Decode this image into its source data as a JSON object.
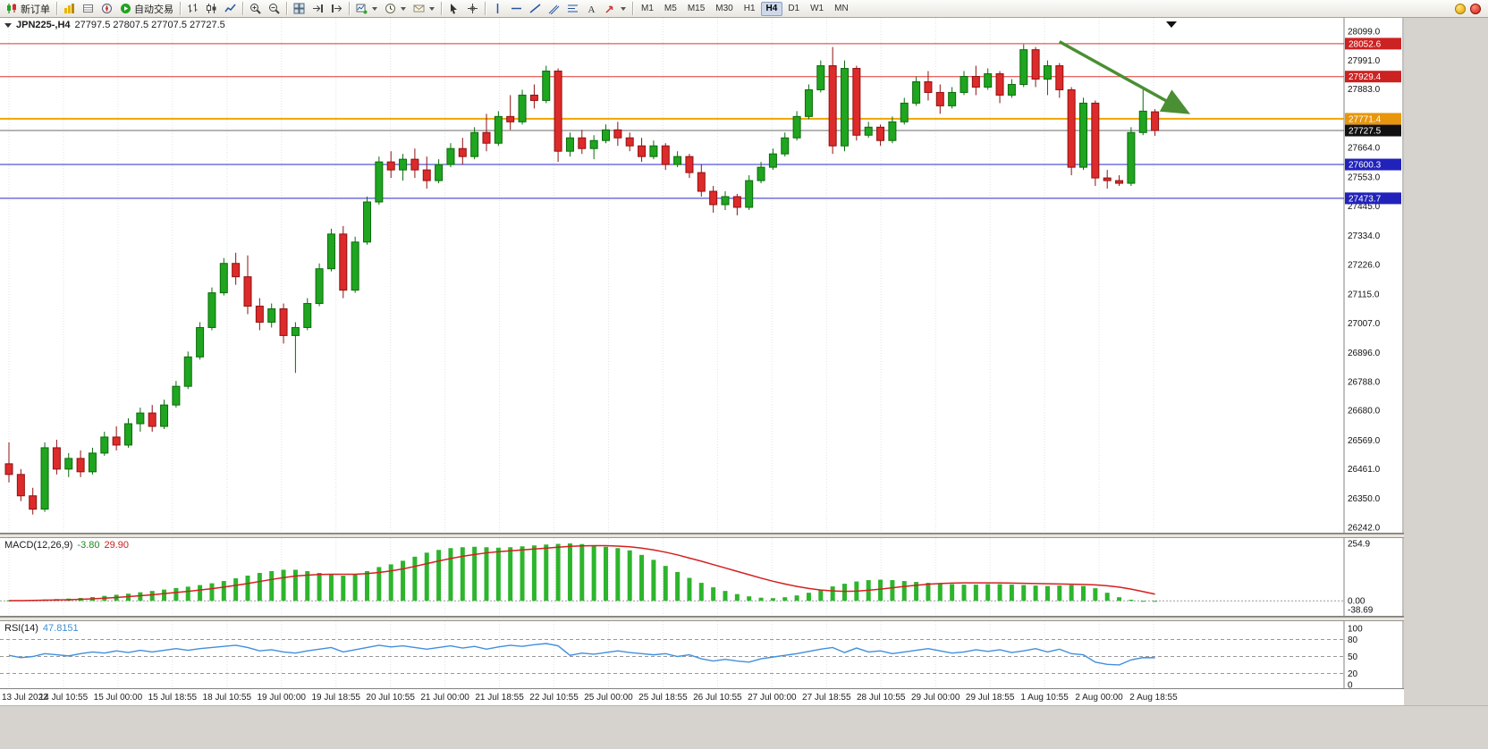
{
  "colors": {
    "bull": "#1fa51f",
    "bull_dark": "#0c6b0c",
    "bear": "#dd2a2a",
    "bear_dark": "#8f1111",
    "resistance_line": "#e03232",
    "support_line": "#2929cc",
    "pivot_line": "#f0a500",
    "price_line": "#6b6b6b",
    "price_badge": "#111111",
    "macd_histogram": "#2db52d",
    "macd_signal": "#d42020",
    "rsi_line": "#418fde",
    "arrow": "#4a8f33",
    "grid": "#e3e3e3",
    "axis_text": "#111111"
  },
  "toolbar": {
    "buttons": [
      {
        "name": "new-order-button",
        "icon": "new-order-icon",
        "label": "新订单"
      },
      {
        "sep": true
      },
      {
        "name": "market-watch-button",
        "icon": "bar-chart-icon"
      },
      {
        "name": "data-window-button",
        "icon": "data-window-icon"
      },
      {
        "name": "navigator-button",
        "icon": "navigator-icon"
      },
      {
        "name": "autotrade-button",
        "icon": "autotrade-icon",
        "label": "自动交易"
      },
      {
        "sep": true
      },
      {
        "name": "bars-chart-button",
        "icon": "ohlc-bars-icon"
      },
      {
        "name": "candles-chart-button",
        "icon": "candles-icon"
      },
      {
        "name": "line-chart-button",
        "icon": "line-chart-icon"
      },
      {
        "sep": true
      },
      {
        "name": "zoom-in-button",
        "icon": "zoom-in-icon"
      },
      {
        "name": "zoom-out-button",
        "icon": "zoom-out-icon"
      },
      {
        "sep": true
      },
      {
        "name": "tile-windows-button",
        "icon": "tile-windows-icon"
      },
      {
        "name": "auto-scroll-button",
        "icon": "auto-scroll-icon"
      },
      {
        "name": "chart-shift-button",
        "icon": "chart-shift-icon"
      },
      {
        "sep": true
      },
      {
        "name": "new-chart-button",
        "icon": "new-chart-icon",
        "dropdown": true
      },
      {
        "name": "profiles-button",
        "icon": "clock-icon",
        "dropdown": true
      },
      {
        "name": "alerts-button",
        "icon": "mail-icon",
        "dropdown": true
      },
      {
        "sep": true
      },
      {
        "name": "cursor-button",
        "icon": "cursor-icon"
      },
      {
        "name": "crosshair-button",
        "icon": "crosshair-icon"
      },
      {
        "sep": true
      },
      {
        "name": "vertical-line-button",
        "icon": "vertical-line-icon"
      },
      {
        "name": "horizontal-line-button",
        "icon": "horizontal-line-icon"
      },
      {
        "name": "trendline-button",
        "icon": "trendline-icon"
      },
      {
        "name": "channel-button",
        "icon": "channel-icon"
      },
      {
        "name": "fibonacci-button",
        "icon": "fibonacci-icon"
      },
      {
        "name": "text-label-button",
        "icon": "text-icon"
      },
      {
        "name": "arrow-tools-button",
        "icon": "arrow-icon",
        "dropdown": true
      },
      {
        "sep": true
      }
    ],
    "timeframes": [
      "M1",
      "M5",
      "M15",
      "M30",
      "H1",
      "H4",
      "D1",
      "W1",
      "MN"
    ],
    "active_timeframe": "H4"
  },
  "chart_data": {
    "type": "candlestick",
    "symbol_timeframe_label": "JPN225-,H4",
    "ohlc_text": "27797.5 27807.5 27707.5 27727.5",
    "current_ohlc": {
      "open": 27797.5,
      "high": 27807.5,
      "low": 27707.5,
      "close": 27727.5
    },
    "ylim": [
      26242.0,
      28099.0
    ],
    "price_axis_ticks": [
      "28099.0",
      "27991.0",
      "27883.0",
      "27664.0",
      "27553.0",
      "27445.0",
      "27334.0",
      "27226.0",
      "27115.0",
      "27007.0",
      "26896.0",
      "26788.0",
      "26680.0",
      "26569.0",
      "26461.0",
      "26350.0",
      "26242.0"
    ],
    "time_axis_labels": [
      "13 Jul 2022",
      "14 Jul 10:55",
      "15 Jul 00:00",
      "15 Jul 18:55",
      "18 Jul 10:55",
      "19 Jul 00:00",
      "19 Jul 18:55",
      "20 Jul 10:55",
      "21 Jul 00:00",
      "21 Jul 18:55",
      "22 Jul 10:55",
      "25 Jul 00:00",
      "25 Jul 18:55",
      "26 Jul 10:55",
      "27 Jul 00:00",
      "27 Jul 18:55",
      "28 Jul 10:55",
      "29 Jul 00:00",
      "29 Jul 18:55",
      "1 Aug 10:55",
      "2 Aug 00:00",
      "2 Aug 18:55"
    ],
    "hlines": [
      {
        "price": 28052.6,
        "label": "28052.6",
        "kind": "resistance"
      },
      {
        "price": 27929.4,
        "label": "27929.4",
        "kind": "resistance"
      },
      {
        "price": 27771.4,
        "label": "27771.4",
        "kind": "pivot"
      },
      {
        "price": 27727.5,
        "label": "27727.5",
        "kind": "current-price"
      },
      {
        "price": 27600.3,
        "label": "27600.3",
        "kind": "support"
      },
      {
        "price": 27473.7,
        "label": "27473.7",
        "kind": "support"
      }
    ],
    "trend_arrow": {
      "from_index": 88,
      "from_price": 28060,
      "to_index": 98.5,
      "to_price": 27800
    },
    "candles_ohlc": [
      [
        26480,
        26560,
        26410,
        26440
      ],
      [
        26440,
        26460,
        26340,
        26360
      ],
      [
        26360,
        26390,
        26290,
        26310
      ],
      [
        26310,
        26560,
        26300,
        26540
      ],
      [
        26540,
        26570,
        26440,
        26460
      ],
      [
        26460,
        26520,
        26430,
        26500
      ],
      [
        26500,
        26530,
        26430,
        26450
      ],
      [
        26450,
        26540,
        26440,
        26520
      ],
      [
        26520,
        26600,
        26510,
        26580
      ],
      [
        26580,
        26620,
        26530,
        26550
      ],
      [
        26550,
        26650,
        26540,
        26630
      ],
      [
        26630,
        26690,
        26600,
        26670
      ],
      [
        26670,
        26700,
        26600,
        26620
      ],
      [
        26620,
        26720,
        26610,
        26700
      ],
      [
        26700,
        26790,
        26690,
        26770
      ],
      [
        26770,
        26900,
        26760,
        26880
      ],
      [
        26880,
        27010,
        26870,
        26990
      ],
      [
        26990,
        27140,
        26980,
        27120
      ],
      [
        27120,
        27250,
        27110,
        27230
      ],
      [
        27230,
        27270,
        27150,
        27180
      ],
      [
        27180,
        27260,
        27040,
        27070
      ],
      [
        27070,
        27100,
        26980,
        27010
      ],
      [
        27010,
        27080,
        26990,
        27060
      ],
      [
        27060,
        27080,
        26930,
        26960
      ],
      [
        26960,
        27010,
        26820,
        26990
      ],
      [
        26990,
        27100,
        26980,
        27080
      ],
      [
        27080,
        27230,
        27070,
        27210
      ],
      [
        27210,
        27360,
        27200,
        27340
      ],
      [
        27340,
        27370,
        27100,
        27130
      ],
      [
        27130,
        27330,
        27120,
        27310
      ],
      [
        27310,
        27480,
        27300,
        27460
      ],
      [
        27460,
        27630,
        27450,
        27610
      ],
      [
        27610,
        27650,
        27550,
        27580
      ],
      [
        27580,
        27640,
        27540,
        27620
      ],
      [
        27620,
        27660,
        27550,
        27580
      ],
      [
        27580,
        27630,
        27510,
        27540
      ],
      [
        27540,
        27620,
        27530,
        27600
      ],
      [
        27600,
        27680,
        27590,
        27660
      ],
      [
        27660,
        27700,
        27600,
        27630
      ],
      [
        27630,
        27740,
        27620,
        27720
      ],
      [
        27720,
        27790,
        27650,
        27680
      ],
      [
        27680,
        27800,
        27670,
        27780
      ],
      [
        27780,
        27860,
        27730,
        27760
      ],
      [
        27760,
        27880,
        27750,
        27860
      ],
      [
        27860,
        27900,
        27810,
        27840
      ],
      [
        27840,
        27970,
        27830,
        27950
      ],
      [
        27950,
        27960,
        27610,
        27650
      ],
      [
        27650,
        27720,
        27630,
        27700
      ],
      [
        27700,
        27730,
        27640,
        27660
      ],
      [
        27660,
        27710,
        27620,
        27690
      ],
      [
        27690,
        27750,
        27680,
        27730
      ],
      [
        27730,
        27760,
        27670,
        27700
      ],
      [
        27700,
        27720,
        27650,
        27670
      ],
      [
        27670,
        27700,
        27610,
        27630
      ],
      [
        27630,
        27690,
        27620,
        27670
      ],
      [
        27670,
        27680,
        27580,
        27600
      ],
      [
        27600,
        27650,
        27590,
        27630
      ],
      [
        27630,
        27640,
        27550,
        27570
      ],
      [
        27570,
        27600,
        27480,
        27500
      ],
      [
        27500,
        27520,
        27420,
        27450
      ],
      [
        27450,
        27500,
        27430,
        27480
      ],
      [
        27480,
        27490,
        27410,
        27440
      ],
      [
        27440,
        27560,
        27430,
        27540
      ],
      [
        27540,
        27610,
        27530,
        27590
      ],
      [
        27590,
        27660,
        27580,
        27640
      ],
      [
        27640,
        27720,
        27630,
        27700
      ],
      [
        27700,
        27800,
        27690,
        27780
      ],
      [
        27780,
        27900,
        27770,
        27880
      ],
      [
        27880,
        27990,
        27870,
        27970
      ],
      [
        27970,
        28040,
        27640,
        27670
      ],
      [
        27670,
        27990,
        27650,
        27960
      ],
      [
        27960,
        27970,
        27690,
        27710
      ],
      [
        27710,
        27760,
        27700,
        27740
      ],
      [
        27740,
        27750,
        27670,
        27690
      ],
      [
        27690,
        27780,
        27680,
        27760
      ],
      [
        27760,
        27850,
        27750,
        27830
      ],
      [
        27830,
        27930,
        27820,
        27910
      ],
      [
        27910,
        27950,
        27840,
        27870
      ],
      [
        27870,
        27900,
        27790,
        27820
      ],
      [
        27820,
        27890,
        27810,
        27870
      ],
      [
        27870,
        27950,
        27860,
        27930
      ],
      [
        27930,
        27970,
        27860,
        27890
      ],
      [
        27890,
        27960,
        27880,
        27940
      ],
      [
        27940,
        27950,
        27830,
        27860
      ],
      [
        27860,
        27920,
        27850,
        27900
      ],
      [
        27900,
        28050,
        27890,
        28030
      ],
      [
        28030,
        28040,
        27890,
        27920
      ],
      [
        27920,
        27990,
        27860,
        27970
      ],
      [
        27970,
        27980,
        27850,
        27880
      ],
      [
        27880,
        27890,
        27560,
        27590
      ],
      [
        27590,
        27850,
        27580,
        27830
      ],
      [
        27830,
        27840,
        27520,
        27550
      ],
      [
        27550,
        27580,
        27510,
        27540
      ],
      [
        27540,
        27560,
        27520,
        27530
      ],
      [
        27530,
        27740,
        27520,
        27720
      ],
      [
        27720,
        27880,
        27710,
        27800
      ],
      [
        27797.5,
        27807.5,
        27707.5,
        27727.5
      ]
    ],
    "indicators": {
      "macd": {
        "label": "MACD(12,26,9)",
        "value_text": "-3.80",
        "signal_text": "29.90",
        "axis_ticks": [
          "254.9",
          "0.00",
          "-38.69"
        ],
        "axis_values": [
          254.9,
          0,
          -38.69
        ],
        "range": [
          -38.69,
          254.9
        ],
        "histogram": [
          2,
          3,
          4,
          6,
          8,
          10,
          13,
          17,
          22,
          27,
          32,
          38,
          44,
          50,
          57,
          63,
          70,
          78,
          88,
          100,
          112,
          124,
          132,
          138,
          138,
          132,
          124,
          116,
          112,
          118,
          132,
          150,
          162,
          178,
          196,
          214,
          226,
          234,
          238,
          240,
          238,
          236,
          238,
          242,
          246,
          250,
          253,
          255,
          252,
          246,
          240,
          234,
          224,
          204,
          182,
          155,
          128,
          102,
          80,
          60,
          44,
          30,
          20,
          14,
          12,
          16,
          24,
          36,
          50,
          64,
          76,
          86,
          92,
          94,
          92,
          88,
          84,
          80,
          76,
          74,
          72,
          72,
          74,
          74,
          72,
          70,
          68,
          66,
          68,
          70,
          66,
          56,
          36,
          16,
          5,
          -2,
          -3.8
        ],
        "signal": [
          1,
          1,
          2,
          3,
          4,
          5,
          7,
          9,
          12,
          15,
          19,
          23,
          27,
          32,
          37,
          42,
          48,
          54,
          61,
          69,
          77,
          86,
          95,
          103,
          110,
          114,
          117,
          118,
          118,
          118,
          121,
          126,
          133,
          142,
          153,
          165,
          177,
          188,
          198,
          206,
          213,
          218,
          222,
          226,
          230,
          234,
          238,
          242,
          244,
          245,
          245,
          243,
          240,
          234,
          226,
          216,
          204,
          190,
          176,
          161,
          146,
          131,
          116,
          101,
          87,
          75,
          64,
          55,
          48,
          44,
          42,
          43,
          47,
          52,
          58,
          64,
          69,
          74,
          77,
          79,
          80,
          80,
          80,
          80,
          79,
          78,
          77,
          76,
          75,
          74,
          73,
          71,
          67,
          61,
          52,
          41,
          29.9
        ]
      },
      "rsi": {
        "label": "RSI(14)",
        "value_text": "47.8151",
        "axis_ticks": [
          "100",
          "80",
          "50",
          "20",
          "0"
        ],
        "axis_values": [
          100,
          80,
          50,
          20,
          0
        ],
        "levels": [
          80,
          50,
          20
        ],
        "values": [
          52,
          48,
          50,
          55,
          53,
          51,
          55,
          58,
          56,
          60,
          57,
          61,
          58,
          61,
          64,
          61,
          64,
          66,
          68,
          70,
          66,
          60,
          62,
          58,
          56,
          60,
          63,
          66,
          58,
          62,
          66,
          70,
          67,
          69,
          66,
          63,
          66,
          69,
          65,
          68,
          63,
          67,
          70,
          68,
          71,
          73,
          69,
          52,
          56,
          54,
          57,
          60,
          57,
          55,
          53,
          55,
          50,
          53,
          46,
          42,
          45,
          42,
          40,
          46,
          49,
          52,
          55,
          59,
          63,
          66,
          57,
          65,
          58,
          60,
          55,
          58,
          61,
          64,
          60,
          56,
          58,
          62,
          59,
          62,
          57,
          60,
          64,
          58,
          63,
          55,
          53,
          40,
          36,
          35,
          44,
          48,
          47.8
        ]
      }
    }
  }
}
